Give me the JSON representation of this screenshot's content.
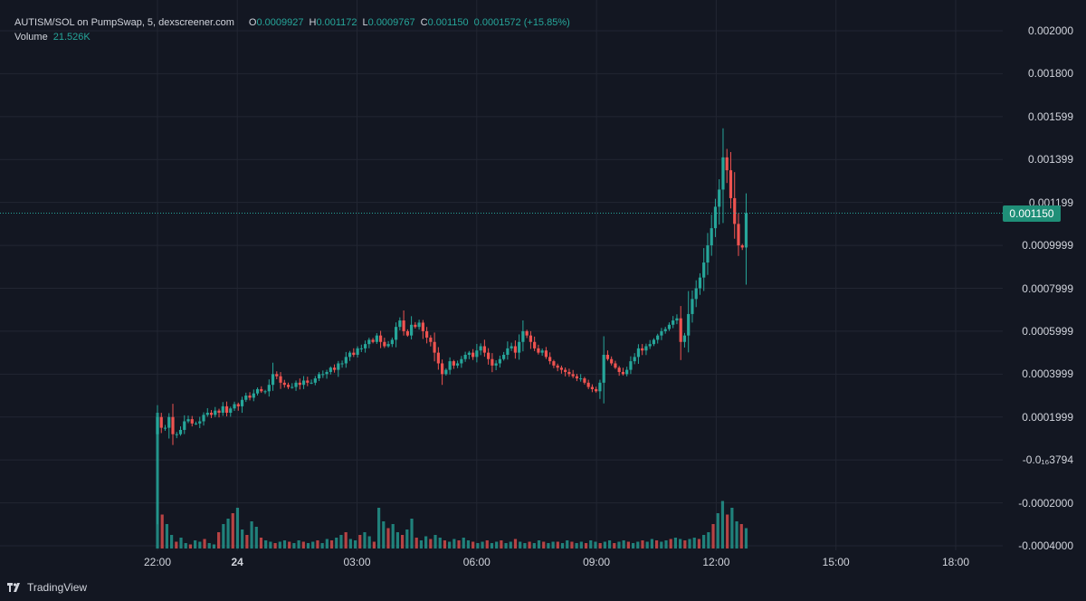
{
  "legend": {
    "title": "AUTISM/SOL on PumpSwap, 5, dexscreener.com",
    "open_label": "O",
    "open": "0.0009927",
    "high_label": "H",
    "high": "0.001172",
    "low_label": "L",
    "low": "0.0009767",
    "close_label": "C",
    "close": "0.001150",
    "change": "0.0001572 (+15.85%)",
    "volume_label": "Volume",
    "volume": "21.526K"
  },
  "last_price": "0.001150",
  "brand": {
    "name": "TradingView",
    "logo_icon": "tradingview-logo-icon"
  },
  "colors": {
    "up": "#26a69a",
    "down": "#ef5350",
    "background": "#131722",
    "grid": "#222632",
    "text": "#d1d4dc"
  },
  "chart_data": {
    "type": "candlestick",
    "interval": "5",
    "symbol": "AUTISM/SOL",
    "price_axis": {
      "ticks": [
        "0.002000",
        "0.001800",
        "0.001599",
        "0.001399",
        "0.001199",
        "0.0009999",
        "0.0007999",
        "0.0005999",
        "0.0003999",
        "0.0001999",
        "-0.0₁₆3794",
        "-0.0002000",
        "-0.0004000"
      ],
      "tick_values": [
        0.002,
        0.0018,
        0.0016,
        0.0014,
        0.0012,
        0.001,
        0.0008,
        0.0006,
        0.0004,
        0.0002,
        0.0,
        -0.0002,
        -0.0004
      ],
      "ylim": [
        -0.0004,
        0.002
      ]
    },
    "time_axis": {
      "labels": [
        "22:00",
        "24",
        "03:00",
        "06:00",
        "09:00",
        "12:00",
        "15:00",
        "18:00"
      ],
      "label_hours": [
        22,
        24,
        27,
        30,
        33,
        36,
        39,
        42
      ],
      "bold": [
        false,
        true,
        false,
        false,
        false,
        false,
        false,
        false
      ]
    },
    "start_hour": 22.0,
    "bar_minutes": 5,
    "candles": [
      [
        0.0002,
        0.00015,
        0.00015,
        0.0002,
        0.00012,
        0.00012,
        0.00014,
        0.00018,
        0.00019,
        0.00017,
        0.00017,
        0.00018,
        0.00021,
        0.00022,
        0.00021,
        0.00023,
        0.00022,
        0.00025,
        0.00022,
        0.00024,
        0.00026,
        0.00025,
        0.00028,
        0.0003,
        0.00029,
        0.00031,
        0.00033,
        0.00032,
        0.00032,
        0.00035,
        0.0004,
        0.00039,
        0.00036,
        0.00035,
        0.00034,
        0.00034,
        0.00036,
        0.00035,
        0.00037,
        0.00036
      ],
      [
        0.00036,
        0.00038,
        0.0004,
        0.0004,
        0.00041,
        0.00043,
        0.00042,
        0.00045,
        0.00045,
        0.00048,
        0.0005,
        0.00049,
        0.00052,
        0.00052,
        0.00054,
        0.00056,
        0.00055,
        0.00058,
        0.00055,
        0.00053,
        0.00054,
        0.00056,
        0.00062,
        0.00065,
        0.0006,
        0.00058,
        0.00063,
        0.00062,
        0.00064,
        0.0006,
        0.00057,
        0.00055,
        0.0005,
        0.00045,
        0.0004,
        0.00042,
        0.00046,
        0.00044,
        0.00045,
        0.00047
      ]
    ],
    "candles_note_keys": [
      "closes_first_half",
      "closes_second_half"
    ],
    "candles_more": [
      0.00049,
      0.0005,
      0.00048,
      0.00051,
      0.00053,
      0.0005,
      0.00047,
      0.00044,
      0.00045,
      0.00047,
      0.00049,
      0.00052,
      0.00053,
      0.0005,
      0.00055,
      0.0006,
      0.00058,
      0.00055,
      0.00052,
      0.0005,
      0.00051,
      0.00048,
      0.00046,
      0.00044,
      0.00043,
      0.00042,
      0.00041,
      0.0004,
      0.00039,
      0.00038,
      0.00038,
      0.00036,
      0.00034,
      0.00033,
      0.00032,
      0.00036,
      0.00049,
      0.00047,
      0.00045,
      0.00043,
      0.00041,
      0.0004,
      0.00042,
      0.00046,
      0.00048,
      0.00052,
      0.00051,
      0.00053,
      0.00054,
      0.00056,
      0.00058,
      0.0006,
      0.00061,
      0.00063,
      0.00065,
      0.00066,
      0.00055,
      0.00058,
      0.00068,
      0.00075,
      0.0008,
      0.00085,
      0.00092,
      0.001,
      0.00108,
      0.00118,
      0.00126,
      0.00141,
      0.00135,
      0.00122,
      0.0011,
      0.001,
      0.00099,
      0.00115
    ],
    "volume_hint": [
      1.0,
      0.25,
      0.18,
      0.1,
      0.05,
      0.08,
      0.04,
      0.03,
      0.06,
      0.05,
      0.07,
      0.04,
      0.03,
      0.12,
      0.18,
      0.22,
      0.26,
      0.3,
      0.14,
      0.1,
      0.2,
      0.16,
      0.08,
      0.06,
      0.05,
      0.04,
      0.05,
      0.06,
      0.05,
      0.04,
      0.06,
      0.05,
      0.04,
      0.05,
      0.06,
      0.04,
      0.07,
      0.06,
      0.08,
      0.1,
      0.12,
      0.07,
      0.06,
      0.1,
      0.12,
      0.09,
      0.05,
      0.3,
      0.2,
      0.15,
      0.18,
      0.12,
      0.1,
      0.14,
      0.22,
      0.08,
      0.06,
      0.09,
      0.07,
      0.1,
      0.08,
      0.06,
      0.05,
      0.07,
      0.06,
      0.08,
      0.06,
      0.05,
      0.04,
      0.05,
      0.06,
      0.04,
      0.05,
      0.06,
      0.04,
      0.05,
      0.07,
      0.05,
      0.04,
      0.05,
      0.04,
      0.06,
      0.05,
      0.04,
      0.05,
      0.05,
      0.04,
      0.06,
      0.05,
      0.04,
      0.05,
      0.04,
      0.06,
      0.05,
      0.04,
      0.05,
      0.06,
      0.04,
      0.05,
      0.06,
      0.05,
      0.04,
      0.05,
      0.06,
      0.05,
      0.07,
      0.06,
      0.05,
      0.06,
      0.07,
      0.08,
      0.07,
      0.06,
      0.07,
      0.08,
      0.07,
      0.1,
      0.12,
      0.18,
      0.26,
      0.35,
      0.25,
      0.3,
      0.2,
      0.18,
      0.15
    ]
  }
}
